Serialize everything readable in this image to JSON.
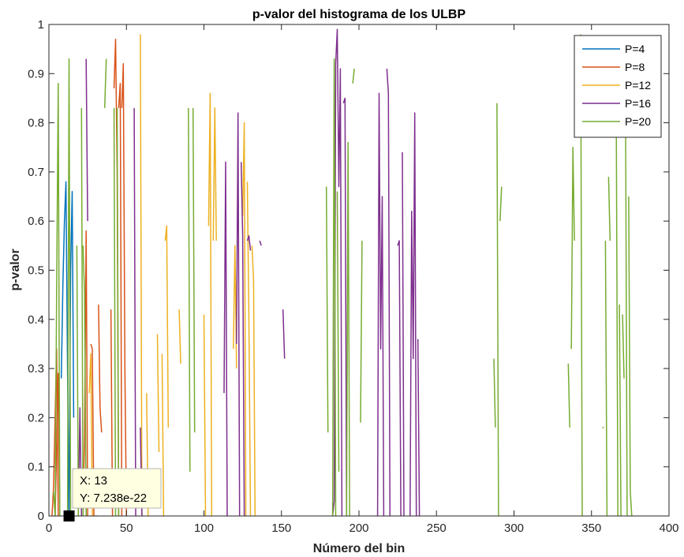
{
  "chart_data": {
    "type": "line",
    "title": "p-valor del histograma de los ULBP",
    "xlabel": "Número del bin",
    "ylabel": "p-valor",
    "xlim": [
      0,
      400
    ],
    "ylim": [
      0,
      1
    ],
    "xticks": [
      "0",
      "50",
      "100",
      "150",
      "200",
      "250",
      "300",
      "350",
      "400"
    ],
    "yticks": [
      "0",
      "0.1",
      "0.2",
      "0.3",
      "0.4",
      "0.5",
      "0.6",
      "0.7",
      "0.8",
      "0.9",
      "1"
    ],
    "grid": false,
    "legend_position": "top-right",
    "series": [
      {
        "name": "P=4",
        "color": "#0072BD",
        "segments": [
          [
            [
              8,
              0.28
            ],
            [
              9,
              0.47
            ],
            [
              10,
              0.6
            ],
            [
              11,
              0.68
            ],
            [
              12,
              0.3
            ],
            [
              13,
              0.0
            ]
          ],
          [
            [
              13,
              0.0
            ],
            [
              14,
              0.5
            ],
            [
              15,
              0.66
            ],
            [
              16,
              0.2
            ]
          ]
        ]
      },
      {
        "name": "P=8",
        "color": "#D95319",
        "segments": [
          [
            [
              2,
              0.0
            ],
            [
              3,
              0.06
            ],
            [
              5,
              0.34
            ],
            [
              6,
              0.0
            ]
          ],
          [
            [
              4,
              0.0
            ],
            [
              6,
              0.29
            ],
            [
              7,
              0.0
            ]
          ],
          [
            [
              22,
              0.0
            ],
            [
              23,
              0.17
            ],
            [
              24,
              0.58
            ],
            [
              25,
              0.0
            ]
          ],
          [
            [
              27,
              0.35
            ],
            [
              28,
              0.34
            ],
            [
              29,
              0.0
            ]
          ],
          [
            [
              30,
              0.0
            ],
            [
              31,
              0.0
            ]
          ],
          [
            [
              32,
              0.43
            ],
            [
              33,
              0.22
            ],
            [
              34,
              0.17
            ]
          ],
          [
            [
              40,
              0.42
            ],
            [
              41,
              0.0
            ]
          ],
          [
            [
              42,
              0.87
            ],
            [
              43,
              0.97
            ],
            [
              44,
              0.7
            ],
            [
              45,
              0.0
            ]
          ],
          [
            [
              45,
              0.83
            ],
            [
              46,
              0.88
            ],
            [
              47,
              0.0
            ]
          ],
          [
            [
              47,
              0.83
            ],
            [
              48,
              0.92
            ],
            [
              49,
              0.3
            ],
            [
              50,
              0.0
            ]
          ]
        ]
      },
      {
        "name": "P=12",
        "color": "#EDB120",
        "segments": [
          [
            [
              26,
              0.25
            ],
            [
              27,
              0.33
            ],
            [
              28,
              0.0
            ]
          ],
          [
            [
              59,
              0.98
            ],
            [
              60,
              0.0
            ]
          ],
          [
            [
              63,
              0.25
            ],
            [
              64,
              0.0
            ]
          ],
          [
            [
              70,
              0.37
            ],
            [
              71,
              0.13
            ]
          ],
          [
            [
              73,
              0.33
            ],
            [
              74,
              0.0
            ]
          ],
          [
            [
              75,
              0.56
            ],
            [
              76,
              0.59
            ],
            [
              77,
              0.18
            ]
          ],
          [
            [
              84,
              0.42
            ],
            [
              85,
              0.31
            ]
          ],
          [
            [
              100,
              0.41
            ],
            [
              101,
              0.0
            ]
          ],
          [
            [
              103,
              0.59
            ],
            [
              104,
              0.86
            ],
            [
              105,
              0.0
            ]
          ],
          [
            [
              106,
              0.56
            ],
            [
              107,
              0.83
            ],
            [
              108,
              0.56
            ]
          ],
          [
            [
              119,
              0.34
            ],
            [
              120,
              0.55
            ],
            [
              121,
              0.3
            ]
          ],
          [
            [
              125,
              0.61
            ],
            [
              126,
              0.8
            ],
            [
              127,
              0.0
            ]
          ],
          [
            [
              128,
              0.68
            ],
            [
              129,
              0.4
            ],
            [
              130,
              0.0
            ]
          ],
          [
            [
              131,
              0.55
            ],
            [
              132,
              0.48
            ],
            [
              133,
              0.0
            ]
          ]
        ]
      },
      {
        "name": "P=16",
        "color": "#7E2F8E",
        "segments": [
          [
            [
              19,
              0.0
            ],
            [
              20,
              0.22
            ],
            [
              21,
              0.0
            ]
          ],
          [
            [
              24,
              0.93
            ],
            [
              25,
              0.6
            ]
          ],
          [
            [
              55,
              0.83
            ],
            [
              56,
              0.0
            ]
          ],
          [
            [
              59,
              0.18
            ],
            [
              60,
              0.0
            ]
          ],
          [
            [
              113,
              0.25
            ],
            [
              114,
              0.72
            ],
            [
              115,
              0.0
            ]
          ],
          [
            [
              121,
              0.35
            ],
            [
              122,
              0.82
            ],
            [
              123,
              0.0
            ]
          ],
          [
            [
              124,
              0.72
            ],
            [
              125,
              0.57
            ],
            [
              126,
              0.0
            ]
          ],
          [
            [
              128,
              0.56
            ],
            [
              129,
              0.57
            ],
            [
              130,
              0.54
            ]
          ],
          [
            [
              136,
              0.56
            ],
            [
              137,
              0.55
            ]
          ],
          [
            [
              151,
              0.42
            ],
            [
              152,
              0.32
            ]
          ],
          [
            [
              183,
              0.0
            ],
            [
              184,
              0.03
            ],
            [
              185,
              0.92
            ],
            [
              186,
              0.99
            ],
            [
              187,
              0.67
            ],
            [
              188,
              0.91
            ],
            [
              189,
              0.0
            ]
          ],
          [
            [
              190,
              0.84
            ],
            [
              191,
              0.85
            ],
            [
              192,
              0.0
            ]
          ],
          [
            [
              212,
              0.0
            ],
            [
              213,
              0.86
            ],
            [
              214,
              0.34
            ],
            [
              215,
              0.65
            ],
            [
              216,
              0.0
            ]
          ],
          [
            [
              218,
              0.91
            ],
            [
              219,
              0.86
            ],
            [
              220,
              0.0
            ]
          ],
          [
            [
              225,
              0.55
            ],
            [
              226,
              0.56
            ],
            [
              227,
              0.0
            ]
          ],
          [
            [
              228,
              0.74
            ],
            [
              229,
              0.0
            ]
          ],
          [
            [
              233,
              0.0
            ],
            [
              234,
              0.62
            ],
            [
              235,
              0.32
            ],
            [
              236,
              0.82
            ],
            [
              237,
              0.0
            ]
          ],
          [
            [
              238,
              0.36
            ],
            [
              239,
              0.0
            ]
          ]
        ]
      },
      {
        "name": "P=20",
        "color": "#77AC30",
        "segments": [
          [
            [
              3,
              0.05
            ],
            [
              4,
              0.0
            ],
            [
              5,
              0.46
            ],
            [
              6,
              0.88
            ],
            [
              7,
              0.0
            ]
          ],
          [
            [
              12,
              0.0
            ],
            [
              13,
              0.93
            ],
            [
              14,
              0.0
            ]
          ],
          [
            [
              18,
              0.55
            ],
            [
              19,
              0.0
            ]
          ],
          [
            [
              21,
              0.83
            ],
            [
              22,
              0.0
            ]
          ],
          [
            [
              22,
              0.55
            ],
            [
              23,
              0.45
            ],
            [
              24,
              0.0
            ]
          ],
          [
            [
              36,
              0.83
            ],
            [
              37,
              0.93
            ]
          ],
          [
            [
              42,
              0.83
            ],
            [
              43,
              0.0
            ]
          ],
          [
            [
              44,
              0.83
            ],
            [
              45,
              0.0
            ]
          ],
          [
            [
              90,
              0.83
            ],
            [
              91,
              0.09
            ]
          ],
          [
            [
              93,
              0.83
            ],
            [
              94,
              0.17
            ]
          ],
          [
            [
              179,
              0.67
            ],
            [
              180,
              0.17
            ]
          ],
          [
            [
              183,
              0.0
            ],
            [
              184,
              0.93
            ],
            [
              185,
              0.0
            ]
          ],
          [
            [
              186,
              0.66
            ],
            [
              187,
              0.09
            ]
          ],
          [
            [
              192,
              0.0
            ],
            [
              193,
              0.76
            ],
            [
              194,
              0.0
            ]
          ],
          [
            [
              196,
              0.88
            ],
            [
              197,
              0.91
            ]
          ],
          [
            [
              201,
              0.19
            ],
            [
              202,
              0.56
            ]
          ],
          [
            [
              287,
              0.32
            ],
            [
              288,
              0.18
            ]
          ],
          [
            [
              289,
              0.84
            ],
            [
              290,
              0.0
            ]
          ],
          [
            [
              291,
              0.6
            ],
            [
              292,
              0.67
            ]
          ],
          [
            [
              335,
              0.31
            ],
            [
              336,
              0.18
            ]
          ],
          [
            [
              337,
              0.34
            ],
            [
              338,
              0.75
            ],
            [
              339,
              0.56
            ]
          ],
          [
            [
              343,
              0.98
            ],
            [
              344,
              0.0
            ]
          ],
          [
            [
              357,
              0.18
            ],
            [
              358,
              0.18
            ]
          ],
          [
            [
              359,
              0.56
            ],
            [
              360,
              0.0
            ]
          ],
          [
            [
              361,
              0.69
            ],
            [
              362,
              0.56
            ]
          ],
          [
            [
              366,
              0.79
            ],
            [
              367,
              0.0
            ]
          ],
          [
            [
              368,
              0.43
            ],
            [
              369,
              0.0
            ]
          ],
          [
            [
              370,
              0.41
            ],
            [
              371,
              0.28
            ]
          ],
          [
            [
              372,
              0.79
            ],
            [
              373,
              0.0
            ]
          ],
          [
            [
              374,
              0.65
            ],
            [
              375,
              0.05
            ],
            [
              376,
              0.0
            ]
          ]
        ]
      }
    ],
    "datatip": {
      "x_label": "X: 13",
      "y_label": "Y: 7.238e-22",
      "x": 13,
      "y": 0
    }
  }
}
